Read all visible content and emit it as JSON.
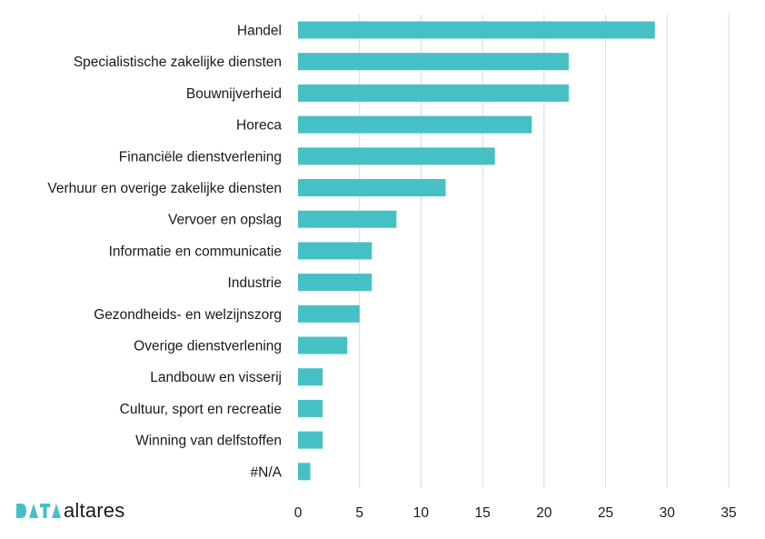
{
  "chart_data": {
    "type": "bar",
    "orientation": "horizontal",
    "categories": [
      "Handel",
      "Specialistische zakelijke diensten",
      "Bouwnijverheid",
      "Horeca",
      "Financiële dienstverlening",
      "Verhuur en overige zakelijke diensten",
      "Vervoer en opslag",
      "Informatie en communicatie",
      "Industrie",
      "Gezondheids- en welzijnszorg",
      "Overige dienstverlening",
      "Landbouw en visserij",
      "Cultuur, sport en recreatie",
      "Winning van delfstoffen",
      "#N/A"
    ],
    "values": [
      29,
      22,
      22,
      19,
      16,
      12,
      8,
      6,
      6,
      5,
      4,
      2,
      2,
      2,
      1
    ],
    "xlim": [
      0,
      35
    ],
    "xticks": [
      "0",
      "5",
      "10",
      "15",
      "20",
      "25",
      "30",
      "35"
    ],
    "bar_color": "#45c1c6",
    "grid": "vertical",
    "title": "",
    "xlabel": "",
    "ylabel": ""
  },
  "logo": {
    "text": "altares",
    "mark_color": "#45c1c6"
  }
}
